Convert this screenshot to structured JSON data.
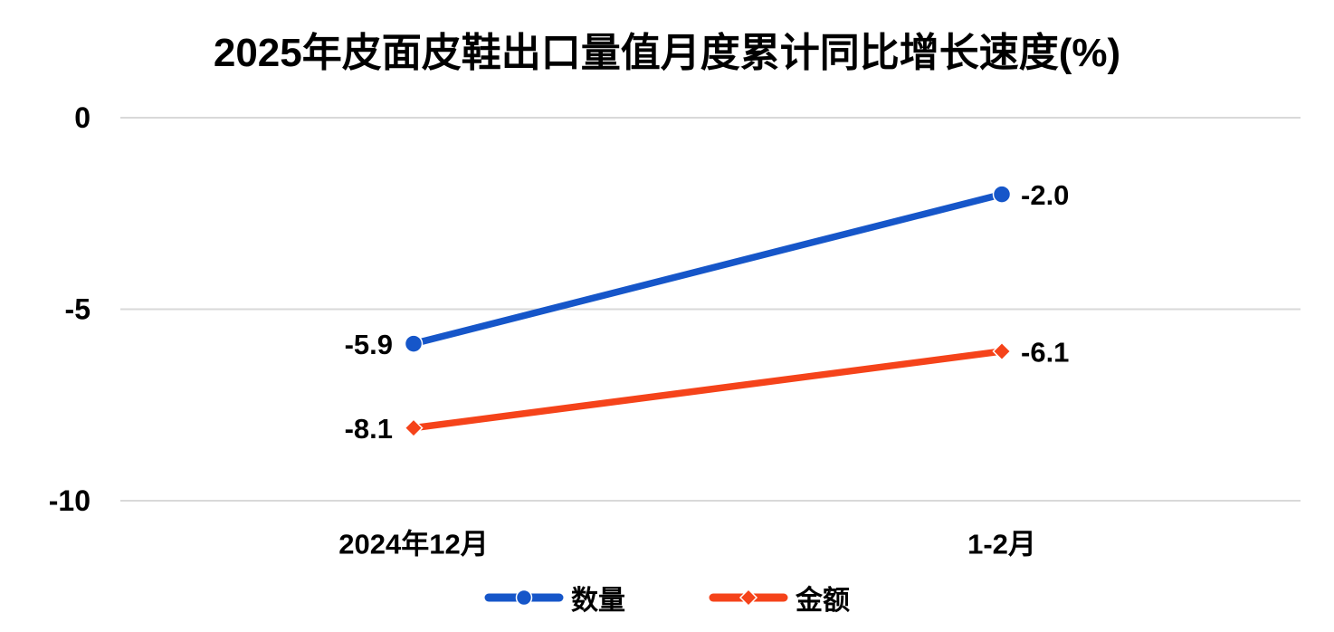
{
  "chart_data": {
    "type": "line",
    "title": "2025年皮面皮鞋出口量值月度累计同比增长速度(%)",
    "categories": [
      "2024年12月",
      "1-2月"
    ],
    "series": [
      {
        "name": "数量",
        "values": [
          -5.9,
          -2.0
        ],
        "labels": [
          "-5.9",
          "-2.0"
        ],
        "color": "#1656C9",
        "marker": "circle"
      },
      {
        "name": "金额",
        "values": [
          -8.1,
          -6.1
        ],
        "labels": [
          "-8.1",
          "-6.1"
        ],
        "color": "#F5431A",
        "marker": "diamond"
      }
    ],
    "y_axis": {
      "tick_labels": [
        "0",
        "-5",
        "-10"
      ],
      "tick_values": [
        0,
        -5,
        -10
      ],
      "min": -10,
      "max": 0
    },
    "xlabel": "",
    "ylabel": "",
    "grid": true,
    "grid_color": "#D9D9D9",
    "text_color": "#000000",
    "background": "#FFFFFF",
    "legend_position": "bottom"
  }
}
